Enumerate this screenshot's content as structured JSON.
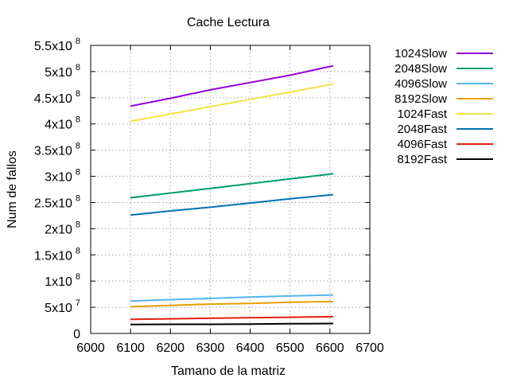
{
  "chart_data": {
    "type": "line",
    "title": "Cache Lectura",
    "xlabel": "Tamano de la matriz",
    "ylabel": "Num de fallos",
    "xlim": [
      6000,
      6700
    ],
    "ylim": [
      0,
      550000000
    ],
    "xticks": [
      6000,
      6100,
      6200,
      6300,
      6400,
      6500,
      6600,
      6700
    ],
    "xtick_labels": [
      "6000",
      "6100",
      "6200",
      "6300",
      "6400",
      "6500",
      "6600",
      "6700"
    ],
    "yticks": [
      {
        "value": 0,
        "mantissa": "0",
        "exp": ""
      },
      {
        "value": 50000000,
        "mantissa": "5x10",
        "exp": "7"
      },
      {
        "value": 100000000,
        "mantissa": "1x10",
        "exp": "8"
      },
      {
        "value": 150000000,
        "mantissa": "1.5x10",
        "exp": "8"
      },
      {
        "value": 200000000,
        "mantissa": "2x10",
        "exp": "8"
      },
      {
        "value": 250000000,
        "mantissa": "2.5x10",
        "exp": "8"
      },
      {
        "value": 300000000,
        "mantissa": "3x10",
        "exp": "8"
      },
      {
        "value": 350000000,
        "mantissa": "3.5x10",
        "exp": "8"
      },
      {
        "value": 400000000,
        "mantissa": "4x10",
        "exp": "8"
      },
      {
        "value": 450000000,
        "mantissa": "4.5x10",
        "exp": "8"
      },
      {
        "value": 500000000,
        "mantissa": "5x10",
        "exp": "8"
      },
      {
        "value": 550000000,
        "mantissa": "5.5x10",
        "exp": "8"
      }
    ],
    "grid": true,
    "legend_position": "outside-right",
    "x": [
      6100,
      6200,
      6300,
      6400,
      6500,
      6608
    ],
    "series": [
      {
        "name": "1024Slow",
        "color": "#9400d3",
        "values": [
          434000000,
          449000000,
          465000000,
          479000000,
          493000000,
          511000000
        ]
      },
      {
        "name": "2048Slow",
        "color": "#009e73",
        "values": [
          259000000,
          268000000,
          277000000,
          286000000,
          295000000,
          305000000
        ]
      },
      {
        "name": "4096Slow",
        "color": "#56b4e9",
        "values": [
          62000000,
          64500000,
          67000000,
          69500000,
          71500000,
          73500000
        ]
      },
      {
        "name": "8192Slow",
        "color": "#e69f00",
        "values": [
          51000000,
          53500000,
          56000000,
          57500000,
          59500000,
          61000000
        ]
      },
      {
        "name": "1024Fast",
        "color": "#f0e442",
        "values": [
          405000000,
          419000000,
          433000000,
          447000000,
          461000000,
          476000000
        ]
      },
      {
        "name": "2048Fast",
        "color": "#0072b2",
        "values": [
          226000000,
          234000000,
          241000000,
          249000000,
          257000000,
          265000000
        ]
      },
      {
        "name": "4096Fast",
        "color": "#e51e10",
        "values": [
          27000000,
          28000000,
          29000000,
          30000000,
          31000000,
          32000000
        ]
      },
      {
        "name": "8192Fast",
        "color": "#000000",
        "values": [
          17000000,
          17500000,
          17500000,
          18000000,
          18500000,
          19000000
        ]
      }
    ]
  }
}
